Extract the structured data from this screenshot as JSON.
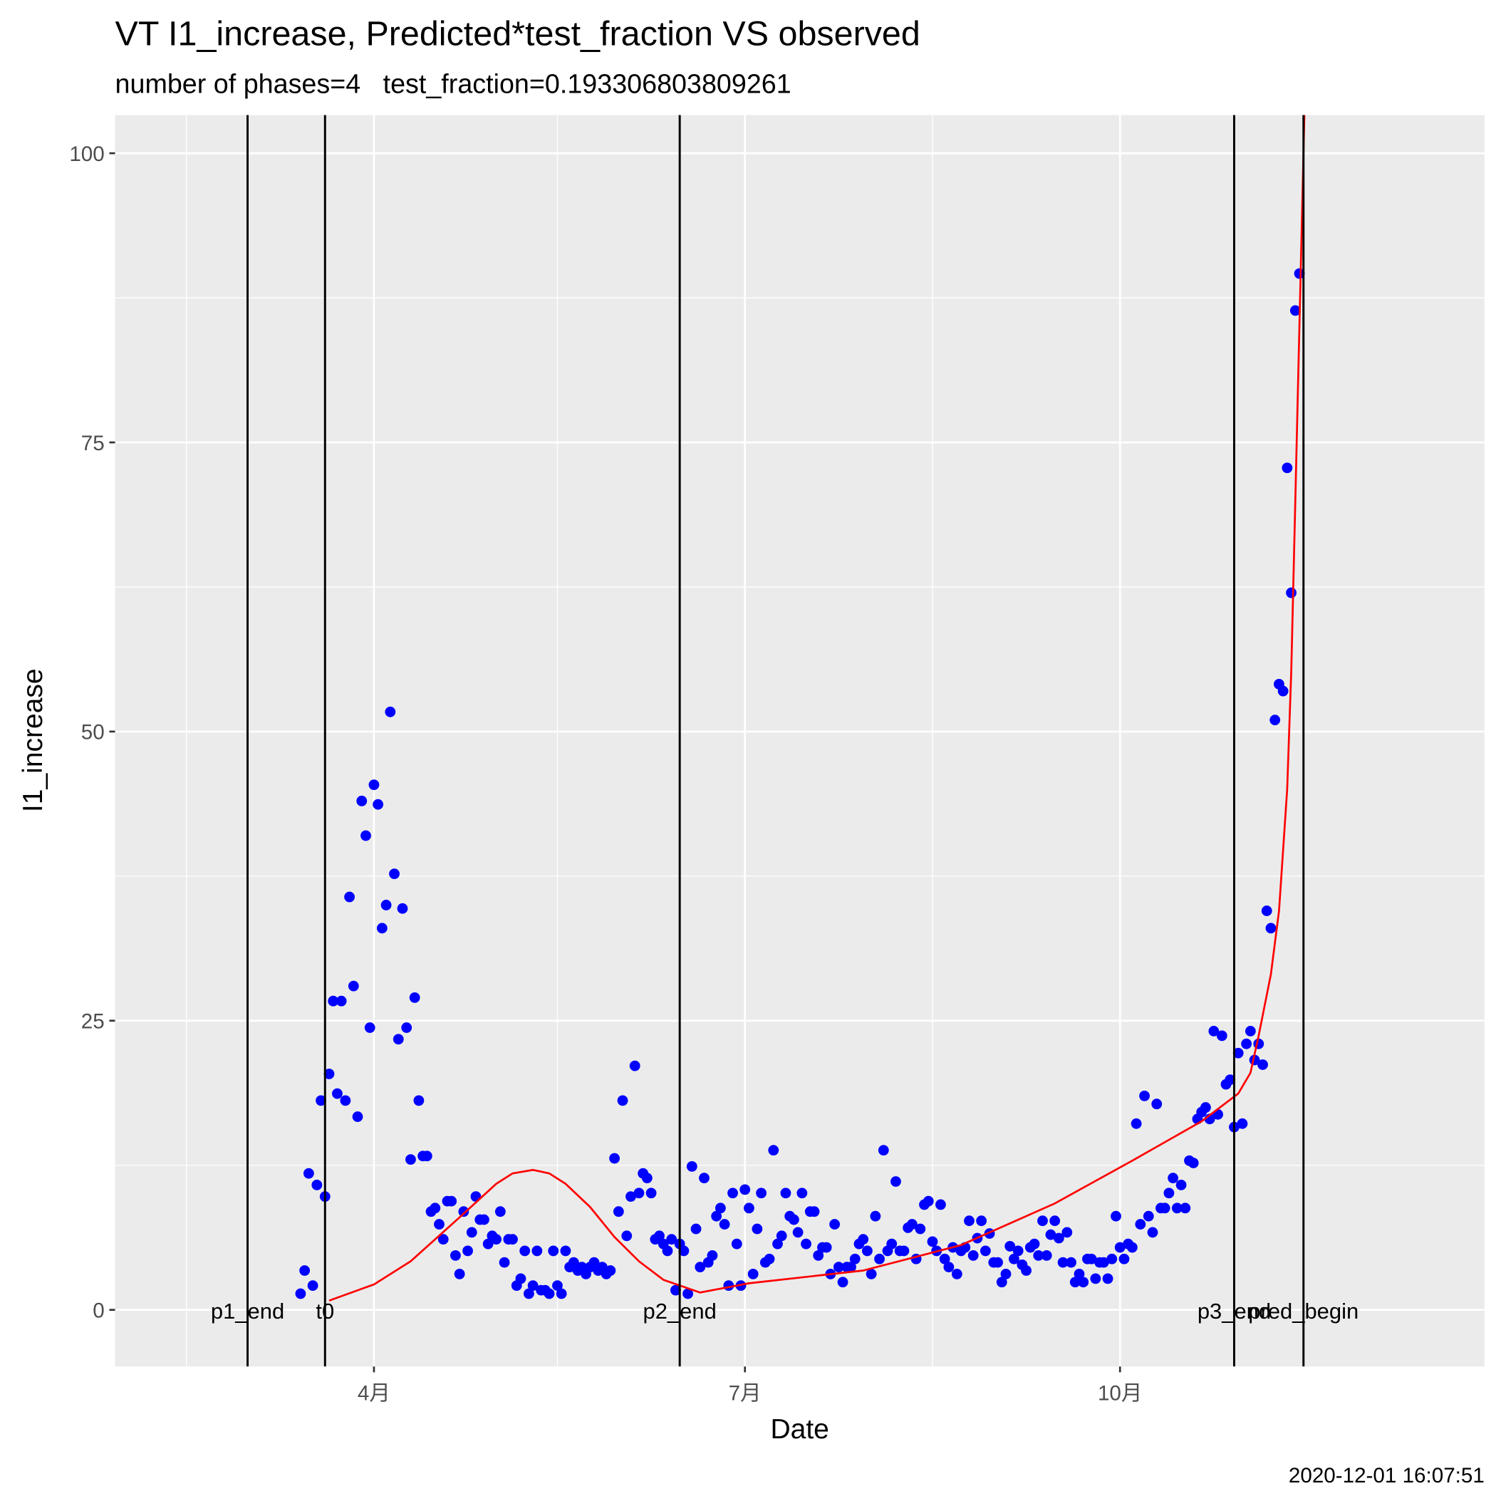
{
  "chart_data": {
    "type": "scatter",
    "title": "VT I1_increase, Predicted*test_fraction VS observed",
    "subtitle": "number of phases=4   test_fraction=0.193306803809261",
    "x_label": "Date",
    "y_label": "I1_increase",
    "caption": "2020-12-01 16:07:51",
    "xlim": [
      28.5,
      364.4
    ],
    "ylim": [
      -4.9,
      103.3
    ],
    "xticks": [
      {
        "value": 92,
        "label": "4月"
      },
      {
        "value": 183,
        "label": "7月"
      },
      {
        "value": 275,
        "label": "10月"
      }
    ],
    "x_minor_ticks": [
      46,
      137,
      229,
      320
    ],
    "yticks": [
      0,
      25,
      50,
      75,
      100
    ],
    "y_minor_ticks": [
      12.5,
      37.5,
      62.5,
      87.5
    ],
    "grid": true,
    "vlines": [
      {
        "x": 61,
        "label": "p1_end"
      },
      {
        "x": 80,
        "label": "t0"
      },
      {
        "x": 167,
        "label": "p2_end"
      },
      {
        "x": 303,
        "label": "p3_end"
      },
      {
        "x": 320,
        "label": "pred_begin"
      }
    ],
    "vline_color": "#000000",
    "series": [
      {
        "type": "scatter",
        "color": "#0000ff",
        "x": [
          74,
          75,
          76,
          77,
          78,
          79,
          80,
          81,
          82,
          83,
          84,
          85,
          86,
          87,
          88,
          89,
          90,
          91,
          92,
          93,
          94,
          95,
          96,
          97,
          98,
          99,
          100,
          101,
          102,
          103,
          104,
          105,
          106,
          107,
          108,
          109,
          110,
          111,
          112,
          113,
          114,
          115,
          116,
          117,
          118,
          119,
          120,
          121,
          122,
          123,
          124,
          125,
          126,
          127,
          128,
          129,
          130,
          131,
          132,
          133,
          134,
          135,
          136,
          137,
          138,
          139,
          140,
          141,
          142,
          143,
          144,
          145,
          146,
          147,
          148,
          149,
          150,
          151,
          152,
          153,
          154,
          155,
          156,
          157,
          158,
          159,
          160,
          161,
          162,
          163,
          164,
          165,
          166,
          167,
          168,
          169,
          170,
          171,
          172,
          173,
          174,
          175,
          176,
          177,
          178,
          179,
          180,
          181,
          182,
          183,
          184,
          185,
          186,
          187,
          188,
          189,
          190,
          191,
          192,
          193,
          194,
          195,
          196,
          197,
          198,
          199,
          200,
          201,
          202,
          203,
          204,
          205,
          206,
          207,
          208,
          209,
          210,
          211,
          212,
          213,
          214,
          215,
          216,
          217,
          218,
          219,
          220,
          221,
          222,
          223,
          224,
          225,
          226,
          227,
          228,
          229,
          230,
          231,
          232,
          233,
          234,
          235,
          236,
          237,
          238,
          239,
          240,
          241,
          242,
          243,
          244,
          245,
          246,
          247,
          248,
          249,
          250,
          251,
          252,
          253,
          254,
          255,
          256,
          257,
          258,
          259,
          260,
          261,
          262,
          263,
          264,
          265,
          266,
          267,
          268,
          269,
          270,
          271,
          272,
          273,
          274,
          275,
          276,
          277,
          278,
          279,
          280,
          281,
          282,
          283,
          284,
          285,
          286,
          287,
          288,
          289,
          290,
          291,
          292,
          293,
          294,
          295,
          296,
          297,
          298,
          299,
          300,
          301,
          302,
          303,
          304,
          305,
          306,
          307,
          308,
          309,
          310,
          311,
          312,
          313,
          314,
          315,
          316,
          317,
          318,
          319
        ],
        "values": [
          1.4,
          3.4,
          11.8,
          2.1,
          10.8,
          18.1,
          9.8,
          20.4,
          26.7,
          18.7,
          26.7,
          18.1,
          35.7,
          28.0,
          16.7,
          44.0,
          41.0,
          24.4,
          45.4,
          43.7,
          33.0,
          35.0,
          51.7,
          37.7,
          23.4,
          34.7,
          24.4,
          13.0,
          27.0,
          18.1,
          13.3,
          13.3,
          8.5,
          8.8,
          7.4,
          6.1,
          9.4,
          9.4,
          4.7,
          3.1,
          8.5,
          5.1,
          6.7,
          9.8,
          7.8,
          7.8,
          5.7,
          6.4,
          6.1,
          8.5,
          4.1,
          6.1,
          6.1,
          2.1,
          2.7,
          5.1,
          1.4,
          2.1,
          5.1,
          1.7,
          1.7,
          1.4,
          5.1,
          2.1,
          1.4,
          5.1,
          3.7,
          4.1,
          3.4,
          3.7,
          3.1,
          3.7,
          4.1,
          3.4,
          3.7,
          3.1,
          3.4,
          13.1,
          8.5,
          18.1,
          6.4,
          9.8,
          21.1,
          10.1,
          11.8,
          11.4,
          10.1,
          6.1,
          6.4,
          5.7,
          5.1,
          6.1,
          1.7,
          5.7,
          5.1,
          1.4,
          12.4,
          7.0,
          3.7,
          11.4,
          4.1,
          4.7,
          8.1,
          8.8,
          7.4,
          2.1,
          10.1,
          5.7,
          2.1,
          10.4,
          8.8,
          3.1,
          7.0,
          10.1,
          4.1,
          4.4,
          13.8,
          5.7,
          6.4,
          10.1,
          8.1,
          7.8,
          6.7,
          10.1,
          5.7,
          8.5,
          8.5,
          4.7,
          5.4,
          5.4,
          3.1,
          7.4,
          3.7,
          2.4,
          3.7,
          3.7,
          4.4,
          5.7,
          6.1,
          5.1,
          3.1,
          8.1,
          4.4,
          13.8,
          5.1,
          5.7,
          11.1,
          5.1,
          5.1,
          7.1,
          7.4,
          4.4,
          7.0,
          9.1,
          9.4,
          5.9,
          5.1,
          9.1,
          4.4,
          3.7,
          5.4,
          3.1,
          5.1,
          5.4,
          7.7,
          4.7,
          6.2,
          7.7,
          5.1,
          6.6,
          4.1,
          4.1,
          2.4,
          3.1,
          5.5,
          4.4,
          5.1,
          3.9,
          3.4,
          5.4,
          5.7,
          4.7,
          7.7,
          4.7,
          6.5,
          7.7,
          6.2,
          4.1,
          6.7,
          4.1,
          2.4,
          3.1,
          2.4,
          4.4,
          4.4,
          2.7,
          4.1,
          4.1,
          2.7,
          4.4,
          8.1,
          5.4,
          4.4,
          5.7,
          5.4,
          16.1,
          7.4,
          18.5,
          8.1,
          6.7,
          17.8,
          8.8,
          8.8,
          10.1,
          11.4,
          8.8,
          10.8,
          8.8,
          12.9,
          12.7,
          16.5,
          17.1,
          17.5,
          16.5,
          24.1,
          16.9,
          23.7,
          19.5,
          19.9,
          15.8,
          22.2,
          16.1,
          23.0,
          24.1,
          21.6,
          23.0,
          21.2,
          34.5,
          33.0,
          51.0,
          54.1,
          53.5,
          72.8,
          62.0,
          86.4,
          89.6
        ]
      },
      {
        "type": "line",
        "color": "#ff0000",
        "x": [
          81,
          92,
          101,
          113,
          122,
          126,
          131,
          135,
          139,
          145,
          151,
          157,
          163,
          172,
          184,
          212,
          236,
          259,
          278,
          295,
          304,
          307,
          309,
          312,
          314,
          316,
          317,
          318,
          319,
          320,
          321
        ],
        "values": [
          0.8,
          2.2,
          4.2,
          8,
          10.9,
          11.8,
          12.1,
          11.8,
          10.9,
          8.9,
          6.3,
          4.2,
          2.6,
          1.5,
          2.3,
          3.4,
          5.6,
          9.2,
          12.9,
          16.3,
          18.7,
          20.5,
          23.7,
          29,
          34.5,
          45,
          55.2,
          70,
          85,
          100,
          115
        ]
      }
    ]
  }
}
